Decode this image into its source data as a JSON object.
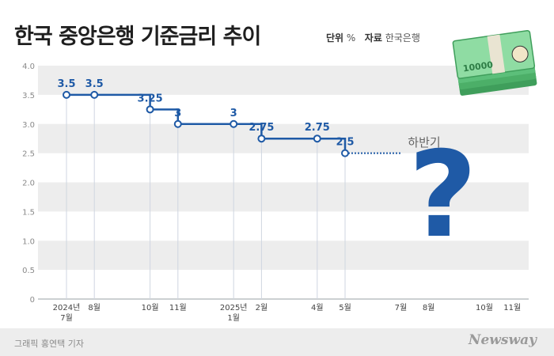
{
  "header": {
    "title": "한국 중앙은행 기준금리 추이",
    "unit_label": "단위",
    "unit_value": "%",
    "source_label": "자료",
    "source_value": "한국은행"
  },
  "footer": {
    "credit": "그래픽 홍연택 기자",
    "brand": "Newsway"
  },
  "illustration": {
    "banknote_label": "10000",
    "question_mark": "?",
    "colors": {
      "banknote": "#5cbf7a",
      "question": "#1f5aa6"
    }
  },
  "chart_data": {
    "type": "line",
    "step": true,
    "ylim": [
      0,
      4.0
    ],
    "yticks": [
      "0",
      "0.5",
      "1.0",
      "1.5",
      "2.0",
      "2.5",
      "3.0",
      "3.5",
      "4.0"
    ],
    "xticks": [
      {
        "idx": 0,
        "label": "2024년",
        "sub": "7월"
      },
      {
        "idx": 1,
        "label": "8월"
      },
      {
        "idx": 3,
        "label": "10월"
      },
      {
        "idx": 4,
        "label": "11월"
      },
      {
        "idx": 6,
        "label": "2025년",
        "sub": "1월"
      },
      {
        "idx": 7,
        "label": "2월"
      },
      {
        "idx": 9,
        "label": "4월"
      },
      {
        "idx": 10,
        "label": "5월"
      },
      {
        "idx": 12,
        "label": "7월"
      },
      {
        "idx": 13,
        "label": "8월"
      },
      {
        "idx": 15,
        "label": "10월"
      },
      {
        "idx": 16,
        "label": "11월"
      }
    ],
    "points": [
      {
        "idx": 0,
        "value": 3.5,
        "label": "3.5"
      },
      {
        "idx": 1,
        "value": 3.5,
        "label": "3.5"
      },
      {
        "idx": 3,
        "value": 3.25,
        "label": "3.25"
      },
      {
        "idx": 4,
        "value": 3.0,
        "label": "3"
      },
      {
        "idx": 6,
        "value": 3.0,
        "label": "3"
      },
      {
        "idx": 7,
        "value": 2.75,
        "label": "2.75"
      },
      {
        "idx": 9,
        "value": 2.75,
        "label": "2.75"
      },
      {
        "idx": 10,
        "value": 2.5,
        "label": "2.5"
      }
    ],
    "forecast": {
      "to_idx": 12,
      "value": 2.5,
      "label": "하반기"
    },
    "grid": true,
    "colors": {
      "line": "#1f5aa6",
      "forecast": "#1f5aa6",
      "stripe": "#ededed",
      "guide": "#cfd6e0",
      "axis": "#9aa0a6"
    }
  }
}
